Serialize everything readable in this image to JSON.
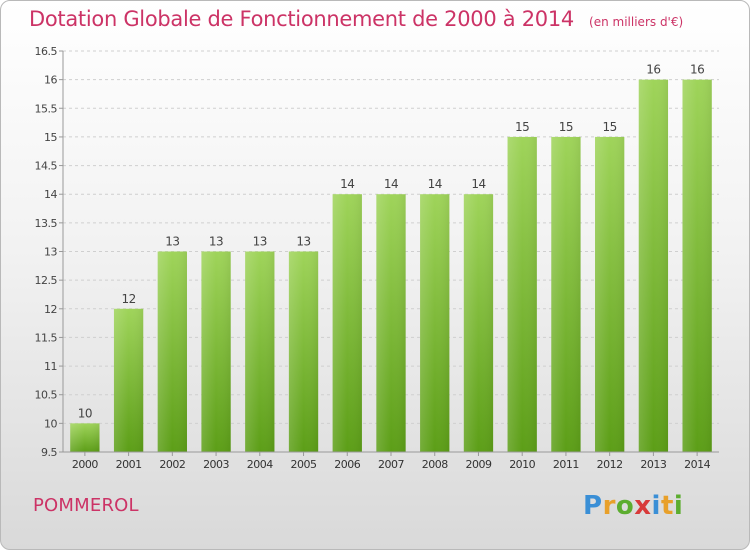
{
  "header": {
    "title": "Dotation Globale de Fonctionnement de 2000 à 2014",
    "unit": "(en milliers d'€)"
  },
  "footer": {
    "city": "POMMEROL",
    "logo_text": "Proxiti"
  },
  "colors": {
    "title": "#cc3366",
    "bar_top": "#9fd45a",
    "bar_bottom": "#5c9e17"
  },
  "chart_data": {
    "type": "bar",
    "title": "Dotation Globale de Fonctionnement de 2000 à 2014",
    "subtitle": "(en milliers d'€)",
    "xlabel": "",
    "ylabel": "",
    "categories": [
      "2000",
      "2001",
      "2002",
      "2003",
      "2004",
      "2005",
      "2006",
      "2007",
      "2008",
      "2009",
      "2010",
      "2011",
      "2012",
      "2013",
      "2014"
    ],
    "values": [
      10,
      12,
      13,
      13,
      13,
      13,
      14,
      14,
      14,
      14,
      15,
      15,
      15,
      16,
      16
    ],
    "data_labels": [
      "10",
      "12",
      "13",
      "13",
      "13",
      "13",
      "14",
      "14",
      "14",
      "14",
      "15",
      "15",
      "15",
      "16",
      "16"
    ],
    "ylim": [
      9.5,
      16.5
    ],
    "yticks": [
      9.5,
      10,
      10.5,
      11,
      11.5,
      12,
      12.5,
      13,
      13.5,
      14,
      14.5,
      15,
      15.5,
      16,
      16.5
    ],
    "ytick_labels": [
      "9.5",
      "10",
      "10.5",
      "11",
      "11.5",
      "12",
      "12.5",
      "13",
      "13.5",
      "14",
      "14.5",
      "15",
      "15.5",
      "16",
      "16.5"
    ],
    "grid": true,
    "legend": "none"
  }
}
